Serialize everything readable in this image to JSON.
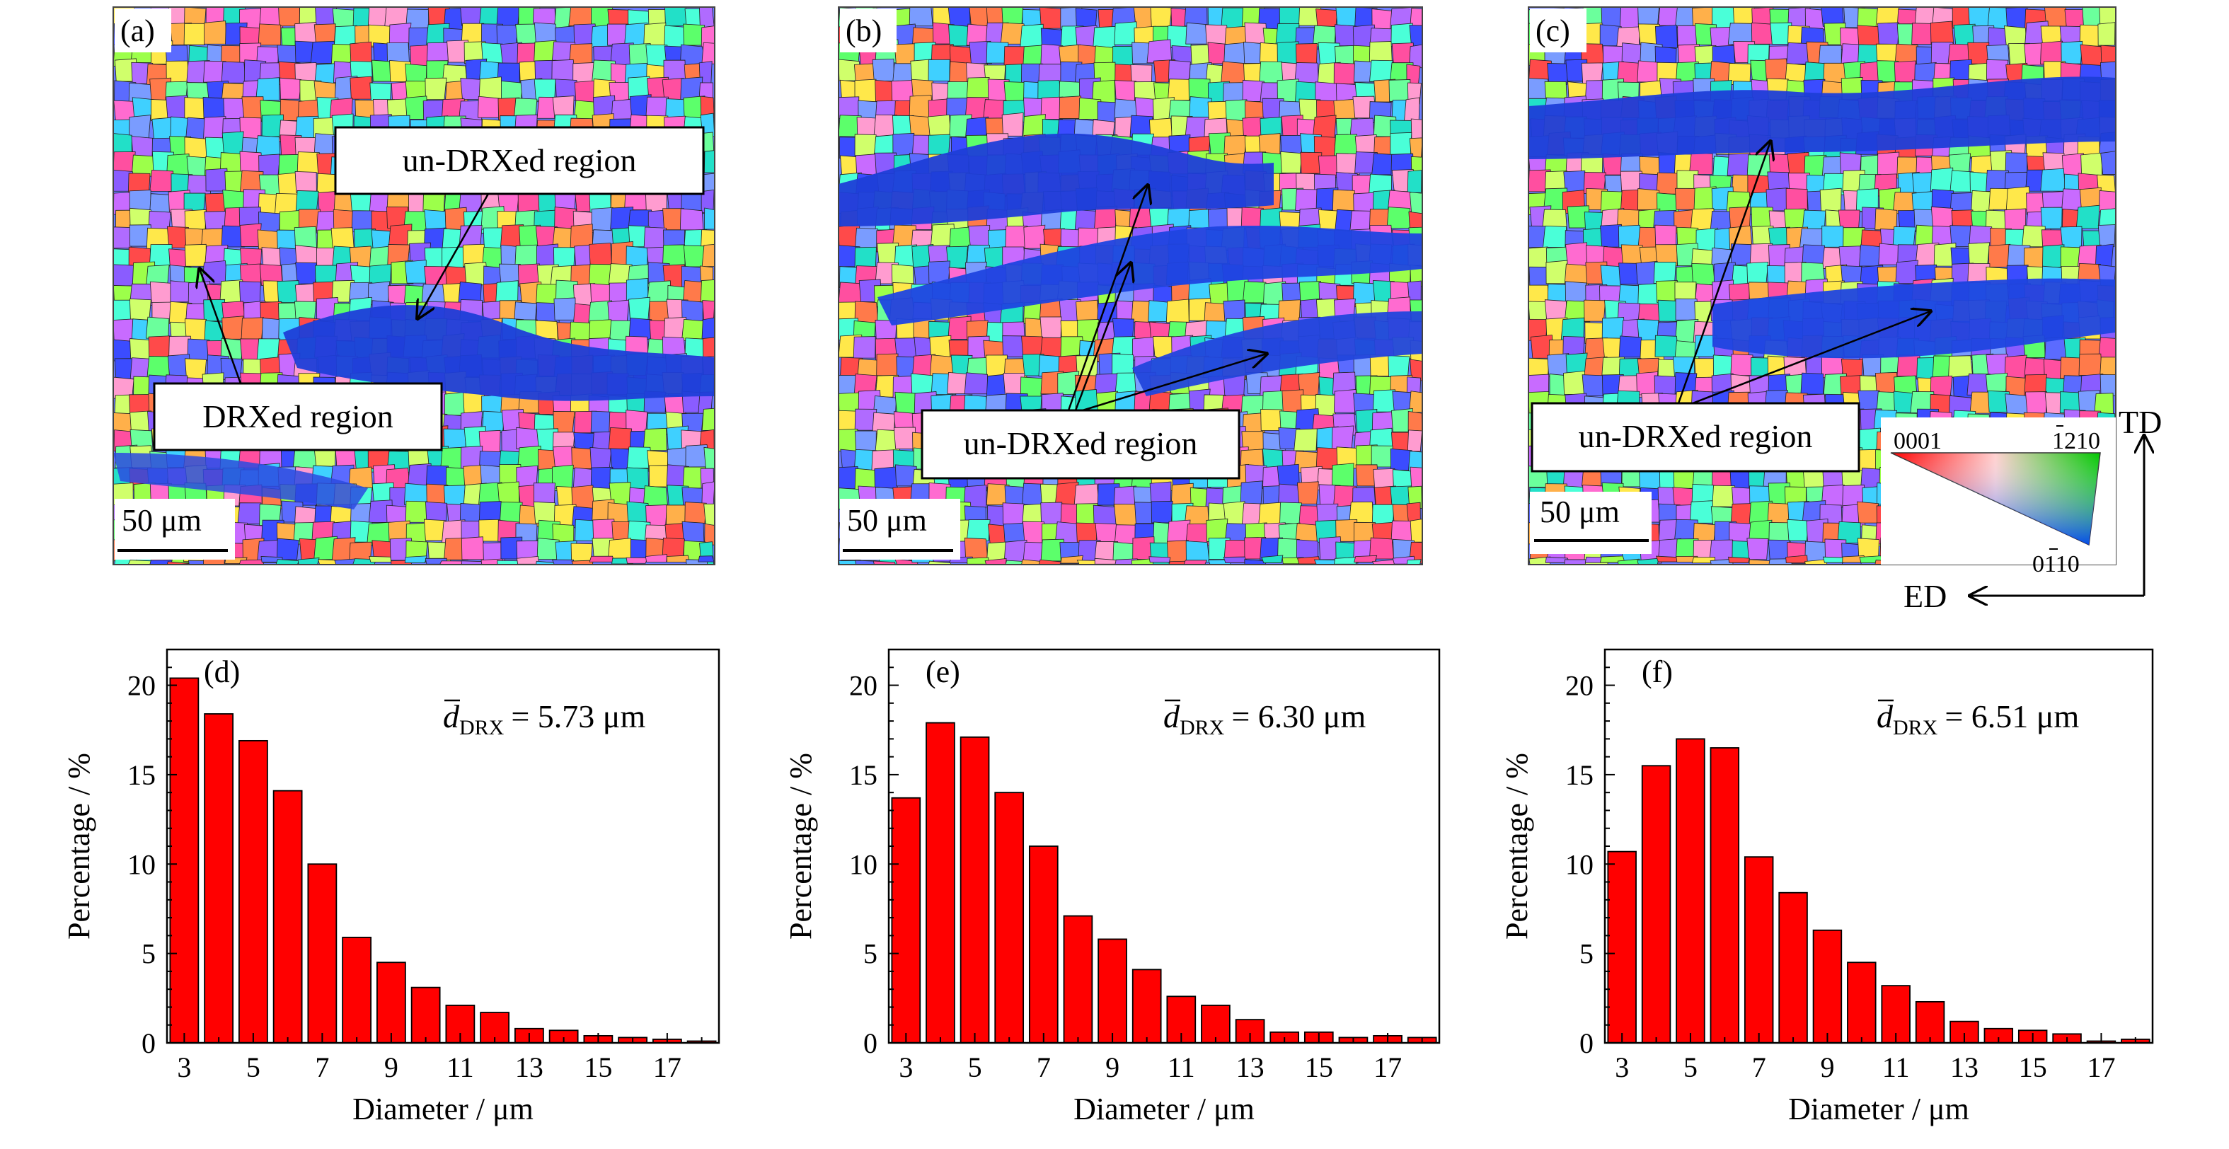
{
  "maps": [
    {
      "label": "(a)",
      "scale_bar": "50 μm",
      "callouts": [
        "un-DRXed region",
        "DRXed region"
      ]
    },
    {
      "label": "(b)",
      "scale_bar": "50 μm",
      "callouts": [
        "un-DRXed region"
      ]
    },
    {
      "label": "(c)",
      "scale_bar": "50 μm",
      "callouts": [
        "un-DRXed region"
      ]
    }
  ],
  "ipf_key": {
    "corners": [
      "0001",
      "1210",
      "0110"
    ],
    "axes": [
      "TD",
      "ED"
    ],
    "colors": {
      "red_corner": "#ff0000",
      "green_corner": "#00c800",
      "blue_corner": "#0040ff"
    }
  },
  "chart_data": [
    {
      "type": "bar",
      "label": "(d)",
      "annotation_symbol": "d",
      "annotation_sub": "DRX",
      "annotation_value": "= 5.73 μm",
      "xlabel": "Diameter / μm",
      "ylabel": "Percentage / %",
      "x": [
        3,
        4,
        5,
        6,
        7,
        8,
        9,
        10,
        11,
        12,
        13,
        14,
        15,
        16,
        17,
        18
      ],
      "x_tick_labels": [
        "3",
        "5",
        "7",
        "9",
        "11",
        "13",
        "15",
        "17"
      ],
      "values": [
        20.4,
        18.4,
        16.9,
        14.1,
        10.0,
        5.9,
        4.5,
        3.1,
        2.1,
        1.7,
        0.8,
        0.7,
        0.4,
        0.3,
        0.2,
        0.1
      ],
      "xlim": [
        2.5,
        18.5
      ],
      "ylim": [
        0,
        22
      ],
      "y_ticks": [
        0,
        5,
        10,
        15,
        20
      ],
      "bar_color": "#ff0000"
    },
    {
      "type": "bar",
      "label": "(e)",
      "annotation_symbol": "d",
      "annotation_sub": "DRX",
      "annotation_value": "= 6.30 μm",
      "xlabel": "Diameter / μm",
      "ylabel": "Percentage / %",
      "x": [
        3,
        4,
        5,
        6,
        7,
        8,
        9,
        10,
        11,
        12,
        13,
        14,
        15,
        16,
        17,
        18
      ],
      "x_tick_labels": [
        "3",
        "5",
        "7",
        "9",
        "11",
        "13",
        "15",
        "17"
      ],
      "values": [
        13.7,
        17.9,
        17.1,
        14.0,
        11.0,
        7.1,
        5.8,
        4.1,
        2.6,
        2.1,
        1.3,
        0.6,
        0.6,
        0.3,
        0.4,
        0.3
      ],
      "xlim": [
        2.5,
        18.5
      ],
      "ylim": [
        0,
        22
      ],
      "y_ticks": [
        0,
        5,
        10,
        15,
        20
      ],
      "bar_color": "#ff0000"
    },
    {
      "type": "bar",
      "label": "(f)",
      "annotation_symbol": "d",
      "annotation_sub": "DRX",
      "annotation_value": "= 6.51 μm",
      "xlabel": "Diameter / μm",
      "ylabel": "Percentage / %",
      "x": [
        3,
        4,
        5,
        6,
        7,
        8,
        9,
        10,
        11,
        12,
        13,
        14,
        15,
        16,
        17,
        18
      ],
      "x_tick_labels": [
        "3",
        "5",
        "7",
        "9",
        "11",
        "13",
        "15",
        "17"
      ],
      "values": [
        10.7,
        15.5,
        17.0,
        16.5,
        10.4,
        8.4,
        6.3,
        4.5,
        3.2,
        2.3,
        1.2,
        0.8,
        0.7,
        0.5,
        0.1,
        0.2
      ],
      "xlim": [
        2.5,
        18.5
      ],
      "ylim": [
        0,
        22
      ],
      "y_ticks": [
        0,
        5,
        10,
        15,
        20
      ],
      "bar_color": "#ff0000"
    }
  ]
}
